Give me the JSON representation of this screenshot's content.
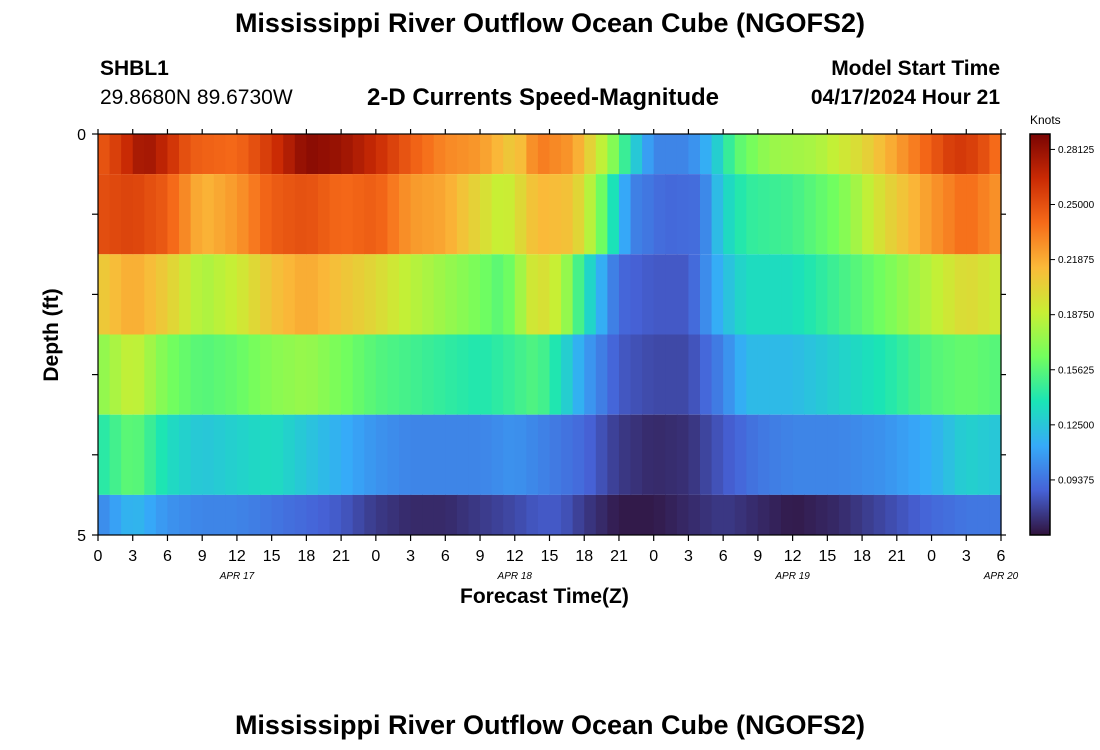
{
  "page": {
    "title": "Mississippi River Outflow Ocean Cube (NGOFS2)",
    "station_id": "SHBL1",
    "station_coords": "29.8680N  89.6730W",
    "subtitle": "2-D Currents Speed-Magnitude",
    "model_start_label": "Model Start Time",
    "model_start_value": "04/17/2024 Hour 21",
    "bottom_title": "Mississippi River Outflow Ocean Cube (NGOFS2)"
  },
  "chart_data": {
    "type": "heatmap",
    "title": "2-D Currents Speed-Magnitude",
    "xlabel": "Forecast Time(Z)",
    "ylabel": "Depth (ft)",
    "colorbar_label": "Knots",
    "colorbar_ticks": [
      "0.28125",
      "0.25000",
      "0.21875",
      "0.18750",
      "0.15625",
      "0.12500",
      "0.09375"
    ],
    "colorbar_tick_values": [
      0.28125,
      0.25,
      0.21875,
      0.1875,
      0.15625,
      0.125,
      0.09375
    ],
    "color_range": [
      0.0625,
      0.29
    ],
    "colormap": [
      "#30123b",
      "#4662d7",
      "#36aaf9",
      "#1ae4b6",
      "#72fe5e",
      "#c8ef34",
      "#faba39",
      "#f66b19",
      "#ca2a04",
      "#7a0403"
    ],
    "y_tick_labels": [
      "0",
      "5"
    ],
    "ylim": [
      0,
      5
    ],
    "x_tick_labels": [
      "0",
      "3",
      "6",
      "9",
      "12",
      "15",
      "18",
      "21",
      "0",
      "3",
      "6",
      "9",
      "12",
      "15",
      "18",
      "21",
      "0",
      "3",
      "6",
      "9",
      "12",
      "15",
      "18",
      "21",
      "0",
      "3",
      "6"
    ],
    "x_range_hours": [
      0,
      78
    ],
    "date_labels": [
      {
        "label": "APR 17",
        "hour": 12
      },
      {
        "label": "APR 18",
        "hour": 36
      },
      {
        "label": "APR 19",
        "hour": 60
      },
      {
        "label": "APR 20",
        "hour": 78
      }
    ],
    "layers": [
      {
        "depth": "0.0-0.5",
        "knots": [
          {
            "h": 0,
            "v": 0.245
          },
          {
            "h": 2,
            "v": 0.26
          },
          {
            "h": 4,
            "v": 0.28
          },
          {
            "h": 6,
            "v": 0.265
          },
          {
            "h": 8,
            "v": 0.245
          },
          {
            "h": 12,
            "v": 0.24
          },
          {
            "h": 15,
            "v": 0.26
          },
          {
            "h": 18,
            "v": 0.285
          },
          {
            "h": 21,
            "v": 0.28
          },
          {
            "h": 24,
            "v": 0.265
          },
          {
            "h": 27,
            "v": 0.245
          },
          {
            "h": 30,
            "v": 0.23
          },
          {
            "h": 33,
            "v": 0.225
          },
          {
            "h": 36,
            "v": 0.205
          },
          {
            "h": 38,
            "v": 0.235
          },
          {
            "h": 41,
            "v": 0.225
          },
          {
            "h": 43,
            "v": 0.195
          },
          {
            "h": 45,
            "v": 0.16
          },
          {
            "h": 46,
            "v": 0.135
          },
          {
            "h": 48,
            "v": 0.1
          },
          {
            "h": 51,
            "v": 0.1
          },
          {
            "h": 53,
            "v": 0.12
          },
          {
            "h": 55,
            "v": 0.155
          },
          {
            "h": 58,
            "v": 0.175
          },
          {
            "h": 62,
            "v": 0.18
          },
          {
            "h": 66,
            "v": 0.2
          },
          {
            "h": 70,
            "v": 0.23
          },
          {
            "h": 74,
            "v": 0.26
          },
          {
            "h": 76,
            "v": 0.255
          },
          {
            "h": 78,
            "v": 0.235
          }
        ]
      },
      {
        "depth": "0.5-1.5",
        "knots": [
          {
            "h": 0,
            "v": 0.25
          },
          {
            "h": 3,
            "v": 0.255
          },
          {
            "h": 6,
            "v": 0.245
          },
          {
            "h": 9,
            "v": 0.215
          },
          {
            "h": 12,
            "v": 0.225
          },
          {
            "h": 15,
            "v": 0.245
          },
          {
            "h": 18,
            "v": 0.25
          },
          {
            "h": 21,
            "v": 0.24
          },
          {
            "h": 24,
            "v": 0.245
          },
          {
            "h": 27,
            "v": 0.225
          },
          {
            "h": 30,
            "v": 0.22
          },
          {
            "h": 33,
            "v": 0.2
          },
          {
            "h": 35,
            "v": 0.185
          },
          {
            "h": 38,
            "v": 0.215
          },
          {
            "h": 41,
            "v": 0.21
          },
          {
            "h": 43,
            "v": 0.175
          },
          {
            "h": 45,
            "v": 0.125
          },
          {
            "h": 46,
            "v": 0.1
          },
          {
            "h": 49,
            "v": 0.09
          },
          {
            "h": 52,
            "v": 0.092
          },
          {
            "h": 54,
            "v": 0.13
          },
          {
            "h": 56,
            "v": 0.145
          },
          {
            "h": 60,
            "v": 0.15
          },
          {
            "h": 64,
            "v": 0.165
          },
          {
            "h": 68,
            "v": 0.2
          },
          {
            "h": 72,
            "v": 0.225
          },
          {
            "h": 75,
            "v": 0.24
          },
          {
            "h": 78,
            "v": 0.225
          }
        ]
      },
      {
        "depth": "1.5-2.5",
        "knots": [
          {
            "h": 0,
            "v": 0.205
          },
          {
            "h": 3,
            "v": 0.22
          },
          {
            "h": 6,
            "v": 0.205
          },
          {
            "h": 9,
            "v": 0.18
          },
          {
            "h": 12,
            "v": 0.19
          },
          {
            "h": 15,
            "v": 0.21
          },
          {
            "h": 18,
            "v": 0.22
          },
          {
            "h": 21,
            "v": 0.21
          },
          {
            "h": 24,
            "v": 0.2
          },
          {
            "h": 27,
            "v": 0.185
          },
          {
            "h": 30,
            "v": 0.175
          },
          {
            "h": 33,
            "v": 0.165
          },
          {
            "h": 35,
            "v": 0.155
          },
          {
            "h": 38,
            "v": 0.2
          },
          {
            "h": 40,
            "v": 0.185
          },
          {
            "h": 42,
            "v": 0.14
          },
          {
            "h": 45,
            "v": 0.09
          },
          {
            "h": 48,
            "v": 0.085
          },
          {
            "h": 51,
            "v": 0.085
          },
          {
            "h": 54,
            "v": 0.12
          },
          {
            "h": 56,
            "v": 0.135
          },
          {
            "h": 60,
            "v": 0.135
          },
          {
            "h": 64,
            "v": 0.15
          },
          {
            "h": 68,
            "v": 0.165
          },
          {
            "h": 72,
            "v": 0.185
          },
          {
            "h": 75,
            "v": 0.2
          },
          {
            "h": 78,
            "v": 0.19
          }
        ]
      },
      {
        "depth": "2.5-3.5",
        "knots": [
          {
            "h": 0,
            "v": 0.17
          },
          {
            "h": 3,
            "v": 0.19
          },
          {
            "h": 6,
            "v": 0.165
          },
          {
            "h": 9,
            "v": 0.155
          },
          {
            "h": 12,
            "v": 0.16
          },
          {
            "h": 15,
            "v": 0.17
          },
          {
            "h": 18,
            "v": 0.175
          },
          {
            "h": 21,
            "v": 0.165
          },
          {
            "h": 24,
            "v": 0.155
          },
          {
            "h": 27,
            "v": 0.15
          },
          {
            "h": 30,
            "v": 0.145
          },
          {
            "h": 33,
            "v": 0.14
          },
          {
            "h": 35,
            "v": 0.145
          },
          {
            "h": 38,
            "v": 0.155
          },
          {
            "h": 40,
            "v": 0.135
          },
          {
            "h": 42,
            "v": 0.11
          },
          {
            "h": 45,
            "v": 0.085
          },
          {
            "h": 48,
            "v": 0.08
          },
          {
            "h": 51,
            "v": 0.08
          },
          {
            "h": 54,
            "v": 0.1
          },
          {
            "h": 56,
            "v": 0.12
          },
          {
            "h": 60,
            "v": 0.12
          },
          {
            "h": 64,
            "v": 0.13
          },
          {
            "h": 68,
            "v": 0.14
          },
          {
            "h": 72,
            "v": 0.155
          },
          {
            "h": 75,
            "v": 0.16
          },
          {
            "h": 78,
            "v": 0.155
          }
        ]
      },
      {
        "depth": "3.5-4.5",
        "knots": [
          {
            "h": 0,
            "v": 0.14
          },
          {
            "h": 3,
            "v": 0.16
          },
          {
            "h": 6,
            "v": 0.135
          },
          {
            "h": 9,
            "v": 0.125
          },
          {
            "h": 12,
            "v": 0.13
          },
          {
            "h": 15,
            "v": 0.135
          },
          {
            "h": 18,
            "v": 0.125
          },
          {
            "h": 21,
            "v": 0.115
          },
          {
            "h": 24,
            "v": 0.105
          },
          {
            "h": 27,
            "v": 0.1
          },
          {
            "h": 30,
            "v": 0.1
          },
          {
            "h": 33,
            "v": 0.1
          },
          {
            "h": 36,
            "v": 0.105
          },
          {
            "h": 38,
            "v": 0.1
          },
          {
            "h": 40,
            "v": 0.095
          },
          {
            "h": 42,
            "v": 0.09
          },
          {
            "h": 45,
            "v": 0.075
          },
          {
            "h": 48,
            "v": 0.07
          },
          {
            "h": 51,
            "v": 0.072
          },
          {
            "h": 54,
            "v": 0.085
          },
          {
            "h": 57,
            "v": 0.095
          },
          {
            "h": 60,
            "v": 0.1
          },
          {
            "h": 64,
            "v": 0.1
          },
          {
            "h": 68,
            "v": 0.105
          },
          {
            "h": 72,
            "v": 0.115
          },
          {
            "h": 75,
            "v": 0.13
          },
          {
            "h": 78,
            "v": 0.125
          }
        ]
      },
      {
        "depth": "4.5-5.0",
        "knots": [
          {
            "h": 0,
            "v": 0.1
          },
          {
            "h": 3,
            "v": 0.12
          },
          {
            "h": 6,
            "v": 0.105
          },
          {
            "h": 9,
            "v": 0.1
          },
          {
            "h": 12,
            "v": 0.1
          },
          {
            "h": 15,
            "v": 0.095
          },
          {
            "h": 18,
            "v": 0.09
          },
          {
            "h": 21,
            "v": 0.085
          },
          {
            "h": 24,
            "v": 0.075
          },
          {
            "h": 27,
            "v": 0.07
          },
          {
            "h": 30,
            "v": 0.07
          },
          {
            "h": 33,
            "v": 0.075
          },
          {
            "h": 36,
            "v": 0.08
          },
          {
            "h": 38,
            "v": 0.085
          },
          {
            "h": 40,
            "v": 0.085
          },
          {
            "h": 42,
            "v": 0.075
          },
          {
            "h": 45,
            "v": 0.065
          },
          {
            "h": 48,
            "v": 0.065
          },
          {
            "h": 51,
            "v": 0.07
          },
          {
            "h": 54,
            "v": 0.075
          },
          {
            "h": 57,
            "v": 0.07
          },
          {
            "h": 60,
            "v": 0.065
          },
          {
            "h": 64,
            "v": 0.07
          },
          {
            "h": 68,
            "v": 0.08
          },
          {
            "h": 72,
            "v": 0.09
          },
          {
            "h": 75,
            "v": 0.095
          },
          {
            "h": 78,
            "v": 0.095
          }
        ]
      }
    ]
  }
}
